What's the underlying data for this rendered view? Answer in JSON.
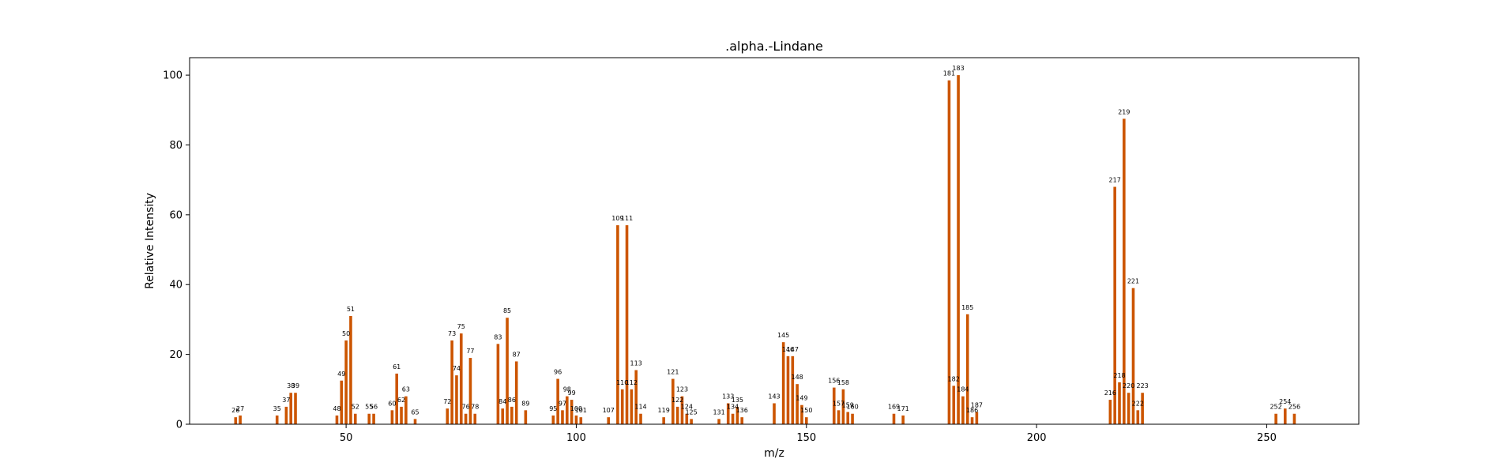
{
  "chart_data": {
    "type": "bar",
    "title": ".alpha.-Lindane",
    "xlabel": "m/z",
    "ylabel": "Relative Intensity",
    "xlim": [
      16,
      270
    ],
    "ylim": [
      0,
      105
    ],
    "xticks": [
      50,
      100,
      150,
      200,
      250
    ],
    "yticks": [
      0,
      20,
      40,
      60,
      80,
      100
    ],
    "grid": false,
    "bar_color": "#cc5500",
    "peaks": [
      {
        "mz": 26,
        "intensity": 2
      },
      {
        "mz": 27,
        "intensity": 2.5
      },
      {
        "mz": 35,
        "intensity": 2.5
      },
      {
        "mz": 37,
        "intensity": 5
      },
      {
        "mz": 38,
        "intensity": 9
      },
      {
        "mz": 39,
        "intensity": 9
      },
      {
        "mz": 48,
        "intensity": 2.5
      },
      {
        "mz": 49,
        "intensity": 12.5
      },
      {
        "mz": 50,
        "intensity": 24
      },
      {
        "mz": 51,
        "intensity": 31
      },
      {
        "mz": 52,
        "intensity": 3
      },
      {
        "mz": 55,
        "intensity": 3
      },
      {
        "mz": 56,
        "intensity": 3
      },
      {
        "mz": 60,
        "intensity": 4
      },
      {
        "mz": 61,
        "intensity": 14.5
      },
      {
        "mz": 62,
        "intensity": 5
      },
      {
        "mz": 63,
        "intensity": 8
      },
      {
        "mz": 65,
        "intensity": 1.5
      },
      {
        "mz": 72,
        "intensity": 4.5
      },
      {
        "mz": 73,
        "intensity": 24
      },
      {
        "mz": 74,
        "intensity": 14
      },
      {
        "mz": 75,
        "intensity": 26
      },
      {
        "mz": 76,
        "intensity": 3
      },
      {
        "mz": 77,
        "intensity": 19
      },
      {
        "mz": 78,
        "intensity": 3
      },
      {
        "mz": 83,
        "intensity": 23
      },
      {
        "mz": 84,
        "intensity": 4.5
      },
      {
        "mz": 85,
        "intensity": 30.5
      },
      {
        "mz": 86,
        "intensity": 5
      },
      {
        "mz": 87,
        "intensity": 18
      },
      {
        "mz": 89,
        "intensity": 4
      },
      {
        "mz": 95,
        "intensity": 2.5
      },
      {
        "mz": 96,
        "intensity": 13
      },
      {
        "mz": 97,
        "intensity": 4
      },
      {
        "mz": 98,
        "intensity": 8
      },
      {
        "mz": 99,
        "intensity": 7
      },
      {
        "mz": 100,
        "intensity": 2.5
      },
      {
        "mz": 101,
        "intensity": 2
      },
      {
        "mz": 107,
        "intensity": 2
      },
      {
        "mz": 109,
        "intensity": 57
      },
      {
        "mz": 110,
        "intensity": 10
      },
      {
        "mz": 111,
        "intensity": 57
      },
      {
        "mz": 112,
        "intensity": 10
      },
      {
        "mz": 113,
        "intensity": 15.5
      },
      {
        "mz": 114,
        "intensity": 3
      },
      {
        "mz": 119,
        "intensity": 2
      },
      {
        "mz": 121,
        "intensity": 13
      },
      {
        "mz": 122,
        "intensity": 5
      },
      {
        "mz": 123,
        "intensity": 8
      },
      {
        "mz": 124,
        "intensity": 3
      },
      {
        "mz": 125,
        "intensity": 1.5
      },
      {
        "mz": 131,
        "intensity": 1.5
      },
      {
        "mz": 133,
        "intensity": 6
      },
      {
        "mz": 134,
        "intensity": 3
      },
      {
        "mz": 135,
        "intensity": 5
      },
      {
        "mz": 136,
        "intensity": 2
      },
      {
        "mz": 143,
        "intensity": 6
      },
      {
        "mz": 145,
        "intensity": 23.5
      },
      {
        "mz": 146,
        "intensity": 19.5
      },
      {
        "mz": 147,
        "intensity": 19.5
      },
      {
        "mz": 148,
        "intensity": 11.5
      },
      {
        "mz": 149,
        "intensity": 5.5
      },
      {
        "mz": 150,
        "intensity": 2
      },
      {
        "mz": 156,
        "intensity": 10.5
      },
      {
        "mz": 157,
        "intensity": 4
      },
      {
        "mz": 158,
        "intensity": 10
      },
      {
        "mz": 159,
        "intensity": 3.5
      },
      {
        "mz": 160,
        "intensity": 3
      },
      {
        "mz": 169,
        "intensity": 3
      },
      {
        "mz": 171,
        "intensity": 2.5
      },
      {
        "mz": 181,
        "intensity": 98.5
      },
      {
        "mz": 182,
        "intensity": 11
      },
      {
        "mz": 183,
        "intensity": 100
      },
      {
        "mz": 184,
        "intensity": 8
      },
      {
        "mz": 185,
        "intensity": 31.5
      },
      {
        "mz": 186,
        "intensity": 2
      },
      {
        "mz": 187,
        "intensity": 3.5
      },
      {
        "mz": 216,
        "intensity": 7
      },
      {
        "mz": 217,
        "intensity": 68
      },
      {
        "mz": 218,
        "intensity": 12
      },
      {
        "mz": 219,
        "intensity": 87.5
      },
      {
        "mz": 220,
        "intensity": 9
      },
      {
        "mz": 221,
        "intensity": 39
      },
      {
        "mz": 222,
        "intensity": 4
      },
      {
        "mz": 223,
        "intensity": 9
      },
      {
        "mz": 252,
        "intensity": 3
      },
      {
        "mz": 254,
        "intensity": 4.5
      },
      {
        "mz": 256,
        "intensity": 3
      }
    ]
  }
}
